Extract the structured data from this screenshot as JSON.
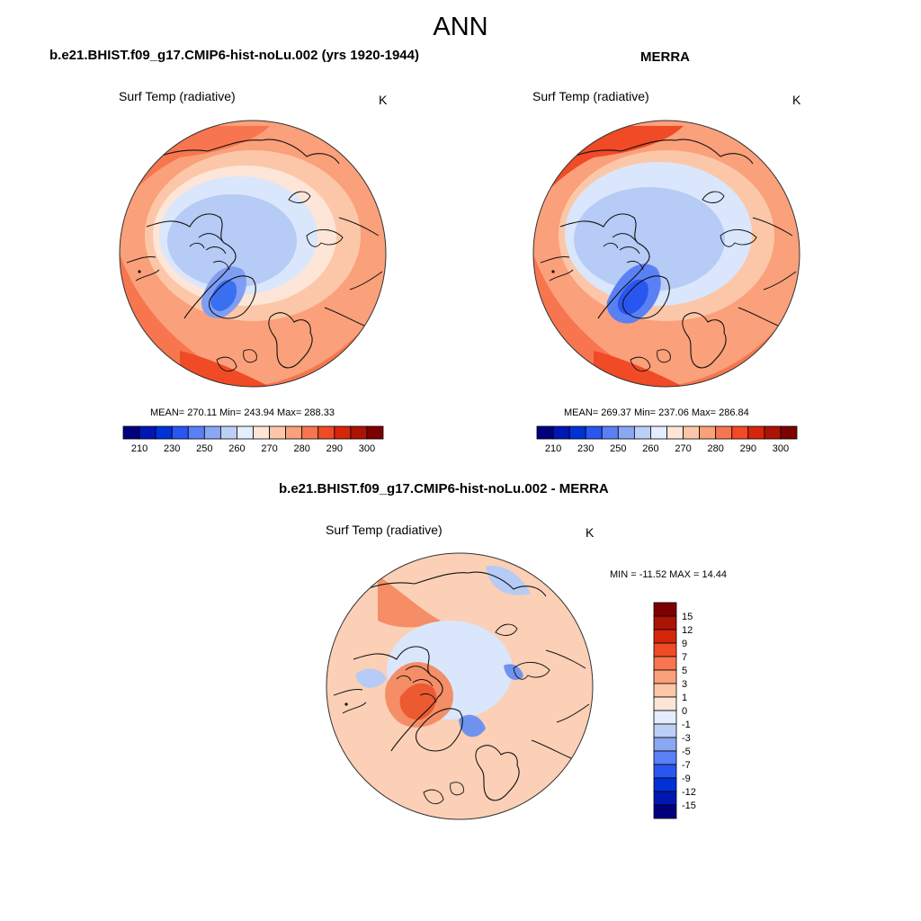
{
  "figure_title": "ANN",
  "panel_model": {
    "title": "b.e21.BHIST.f09_g17.CMIP6-hist-noLu.002 (yrs 1920-1944)",
    "variable": "Surf Temp (radiative)",
    "units": "K",
    "stats": "MEAN= 270.11  Min= 243.94  Max= 288.33"
  },
  "panel_obs": {
    "title": "MERRA",
    "variable": "Surf Temp (radiative)",
    "units": "K",
    "stats": "MEAN= 269.37  Min= 237.06  Max= 286.84"
  },
  "panel_diff": {
    "title": "b.e21.BHIST.f09_g17.CMIP6-hist-noLu.002 - MERRA",
    "variable": "Surf Temp (radiative)",
    "units": "K",
    "stats": "MIN = -11.52 MAX =  14.44"
  },
  "abs_colorbar": {
    "colors": [
      "#00007f",
      "#0017b3",
      "#0032d6",
      "#2a56f0",
      "#5a80f5",
      "#8aa7f2",
      "#bbcff7",
      "#e3edfb",
      "#fde6d8",
      "#fcc7a8",
      "#faa07a",
      "#f7764f",
      "#f04a26",
      "#d5260b",
      "#ab1405",
      "#7d0000"
    ],
    "tick_labels": [
      "210",
      "230",
      "250",
      "260",
      "270",
      "280",
      "290",
      "300"
    ]
  },
  "diff_colorbar": {
    "colors": [
      "#7d0000",
      "#ab1405",
      "#d5260b",
      "#f04a26",
      "#f7764f",
      "#faa07a",
      "#fcc7a8",
      "#fde6d8",
      "#e3edfb",
      "#bbcff7",
      "#8aa7f2",
      "#5a80f5",
      "#2a56f0",
      "#0032d6",
      "#0017b3",
      "#00007f"
    ],
    "tick_labels": [
      "15",
      "12",
      "9",
      "7",
      "5",
      "3",
      "1",
      "0",
      "-1",
      "-3",
      "-5",
      "-7",
      "-9",
      "-12",
      "-15"
    ]
  },
  "map_colors": {
    "ice_cold": "#3a6ff0",
    "ice_mid": "#7f9ef3",
    "arctic_ocean": "#b6cbf5",
    "cold_land": "#dae6fb",
    "cool": "#fde6d8",
    "mild": "#fcc7a8",
    "warm": "#faa07a",
    "hot": "#f7764f",
    "hotter": "#f04a26",
    "diff_neutral": "#fbd0b6",
    "diff_pos": "#f58e66",
    "diff_strong_pos": "#ec5a32",
    "diff_neg": "#b6cbf5",
    "diff_strong_neg": "#6f92ef"
  }
}
